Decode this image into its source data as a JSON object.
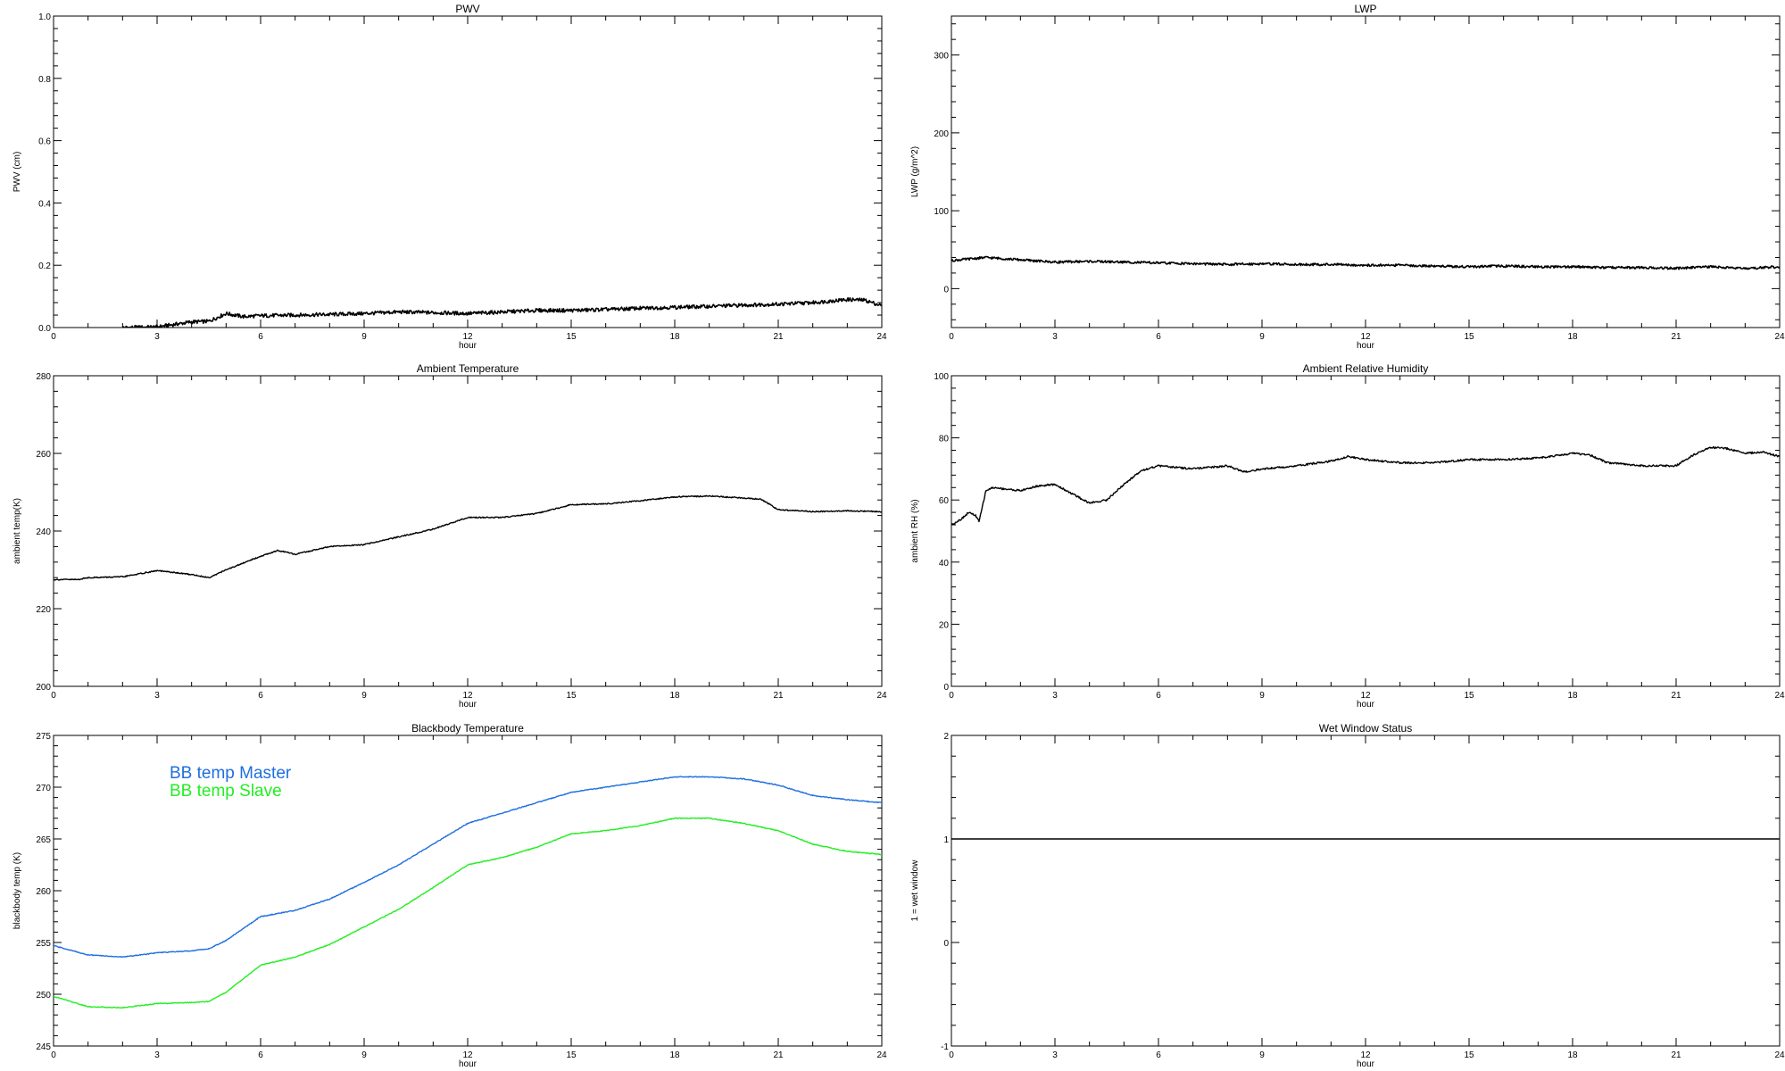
{
  "chart_data": [
    {
      "id": "pwv",
      "type": "line",
      "title": "PWV",
      "xlabel": "hour",
      "ylabel": "PWV (cm)",
      "xlim": [
        0,
        24
      ],
      "ylim": [
        0,
        1.0
      ],
      "xticks": [
        0,
        3,
        6,
        9,
        12,
        15,
        18,
        21,
        24
      ],
      "yticks": [
        0.0,
        0.2,
        0.4,
        0.6,
        0.8,
        1.0
      ],
      "ytick_labels": [
        "0.0",
        "0.2",
        "0.4",
        "0.6",
        "0.8",
        "1.0"
      ],
      "noise": 0.006,
      "series": [
        {
          "name": "",
          "color": "#000000",
          "x": [
            2,
            3,
            3.5,
            4,
            4.5,
            5,
            5.5,
            6,
            7,
            8,
            9,
            10,
            11,
            12,
            13,
            14,
            15,
            16,
            17,
            18,
            19,
            20,
            21,
            22,
            23,
            23.5,
            24
          ],
          "y": [
            0.0,
            0.002,
            0.01,
            0.018,
            0.02,
            0.045,
            0.035,
            0.038,
            0.04,
            0.042,
            0.045,
            0.05,
            0.048,
            0.045,
            0.05,
            0.055,
            0.055,
            0.058,
            0.062,
            0.065,
            0.068,
            0.072,
            0.075,
            0.08,
            0.09,
            0.088,
            0.07
          ]
        }
      ]
    },
    {
      "id": "lwp",
      "type": "line",
      "title": "LWP",
      "xlabel": "hour",
      "ylabel": "LWP (g/m^2)",
      "xlim": [
        0,
        24
      ],
      "ylim": [
        -50,
        350
      ],
      "xticks": [
        0,
        3,
        6,
        9,
        12,
        15,
        18,
        21,
        24
      ],
      "yticks": [
        0,
        100,
        200,
        300
      ],
      "ytick_labels": [
        "0",
        "100",
        "200",
        "300"
      ],
      "noise": 1.5,
      "series": [
        {
          "name": "",
          "color": "#000000",
          "x": [
            0,
            1,
            2,
            3,
            4,
            5,
            6,
            7,
            8,
            9,
            10,
            11,
            12,
            13,
            14,
            15,
            16,
            17,
            18,
            19,
            20,
            21,
            22,
            23,
            24
          ],
          "y": [
            36,
            40,
            37,
            34,
            35,
            34,
            33,
            32,
            31,
            32,
            31,
            31,
            30,
            30,
            29,
            28,
            29,
            28,
            28,
            27,
            27,
            26,
            28,
            26,
            28
          ]
        }
      ]
    },
    {
      "id": "ambient-temp",
      "type": "line",
      "title": "Ambient Temperature",
      "xlabel": "hour",
      "ylabel": "ambient temp(K)",
      "xlim": [
        0,
        24
      ],
      "ylim": [
        200,
        280
      ],
      "xticks": [
        0,
        3,
        6,
        9,
        12,
        15,
        18,
        21,
        24
      ],
      "yticks": [
        200,
        220,
        240,
        260,
        280
      ],
      "ytick_labels": [
        "200",
        "220",
        "240",
        "260",
        "280"
      ],
      "noise": 0.15,
      "series": [
        {
          "name": "",
          "color": "#000000",
          "x": [
            0,
            0.7,
            1,
            2,
            3,
            4,
            4.5,
            5,
            6,
            6.5,
            7,
            8,
            9,
            10,
            11,
            12,
            13,
            14,
            15,
            16,
            17,
            18,
            19,
            20,
            20.5,
            21,
            22,
            23,
            24
          ],
          "y": [
            227.5,
            227.5,
            228,
            228.2,
            229.8,
            228.8,
            228,
            230,
            233.5,
            235,
            234,
            236,
            236.5,
            238.5,
            240.5,
            243.5,
            243.5,
            244.5,
            246.8,
            247,
            247.8,
            248.8,
            249,
            248.5,
            248.2,
            245.5,
            245,
            245.2,
            245
          ]
        }
      ]
    },
    {
      "id": "ambient-rh",
      "type": "line",
      "title": "Ambient Relative Humidity",
      "xlabel": "hour",
      "ylabel": "ambient RH (%)",
      "xlim": [
        0,
        24
      ],
      "ylim": [
        0,
        100
      ],
      "xticks": [
        0,
        3,
        6,
        9,
        12,
        15,
        18,
        21,
        24
      ],
      "yticks": [
        0,
        20,
        40,
        60,
        80,
        100
      ],
      "ytick_labels": [
        "0",
        "20",
        "40",
        "60",
        "80",
        "100"
      ],
      "noise": 0.3,
      "series": [
        {
          "name": "",
          "color": "#000000",
          "x": [
            0,
            0.3,
            0.5,
            0.7,
            0.8,
            1,
            1.2,
            2,
            2.5,
            3,
            3.5,
            4,
            4.5,
            5,
            5.5,
            6,
            7,
            8,
            8.5,
            9,
            10,
            11,
            11.5,
            12,
            13,
            14,
            15,
            16,
            17,
            18,
            18.5,
            19,
            20,
            21,
            21.5,
            22,
            22.5,
            23,
            23.5,
            24
          ],
          "y": [
            52,
            54,
            56,
            55,
            53,
            63,
            64,
            63,
            64.5,
            65,
            62,
            59,
            60,
            65,
            69.5,
            71,
            70,
            71,
            69,
            70,
            71,
            72.5,
            74,
            73,
            72,
            72,
            73,
            73,
            73.5,
            75,
            74.5,
            72,
            71,
            71,
            74.5,
            77,
            76.5,
            75,
            75.5,
            74
          ]
        }
      ]
    },
    {
      "id": "bb-temp",
      "type": "line",
      "title": "Blackbody Temperature",
      "xlabel": "hour",
      "ylabel": "blackbody temp (K)",
      "xlim": [
        0,
        24
      ],
      "ylim": [
        245,
        275
      ],
      "xticks": [
        0,
        3,
        6,
        9,
        12,
        15,
        18,
        21,
        24
      ],
      "yticks": [
        245,
        250,
        255,
        260,
        265,
        270,
        275
      ],
      "ytick_labels": [
        "245",
        "250",
        "255",
        "260",
        "265",
        "270",
        "275"
      ],
      "noise": 0.04,
      "series": [
        {
          "name": "BB temp Master",
          "color": "#1f6fe0",
          "x": [
            0,
            1,
            2,
            3,
            4,
            4.5,
            5,
            6,
            6.5,
            7,
            8,
            9,
            10,
            11,
            12,
            13,
            14,
            15,
            16,
            17,
            18,
            19,
            20,
            21,
            22,
            23,
            24
          ],
          "y": [
            254.7,
            253.8,
            253.6,
            254,
            254.2,
            254.4,
            255.2,
            257.5,
            257.8,
            258.1,
            259.2,
            260.8,
            262.5,
            264.5,
            266.5,
            267.5,
            268.5,
            269.5,
            270,
            270.5,
            271,
            271,
            270.8,
            270.2,
            269.2,
            268.8,
            268.5
          ]
        },
        {
          "name": "BB temp Slave",
          "color": "#22ee22",
          "x": [
            0,
            1,
            2,
            3,
            4,
            4.5,
            5,
            6,
            6.5,
            7,
            8,
            9,
            10,
            11,
            12,
            13,
            14,
            15,
            16,
            17,
            18,
            19,
            20,
            21,
            22,
            23,
            24
          ],
          "y": [
            249.8,
            248.8,
            248.7,
            249.1,
            249.2,
            249.3,
            250.2,
            252.8,
            253.2,
            253.6,
            254.8,
            256.5,
            258.2,
            260.3,
            262.5,
            263.2,
            264.2,
            265.5,
            265.8,
            266.3,
            267,
            267,
            266.5,
            265.8,
            264.5,
            263.8,
            263.5
          ]
        }
      ]
    },
    {
      "id": "wet-window",
      "type": "line",
      "title": "Wet Window Status",
      "xlabel": "hour",
      "ylabel": "1 = wet window",
      "xlim": [
        0,
        24
      ],
      "ylim": [
        -1,
        2
      ],
      "xticks": [
        0,
        3,
        6,
        9,
        12,
        15,
        18,
        21,
        24
      ],
      "yticks": [
        -1,
        0,
        1,
        2
      ],
      "ytick_labels": [
        "-1",
        "0",
        "1",
        "2"
      ],
      "noise": 0,
      "series": [
        {
          "name": "",
          "color": "#000000",
          "x": [
            0,
            24
          ],
          "y": [
            1,
            1
          ]
        }
      ]
    }
  ]
}
